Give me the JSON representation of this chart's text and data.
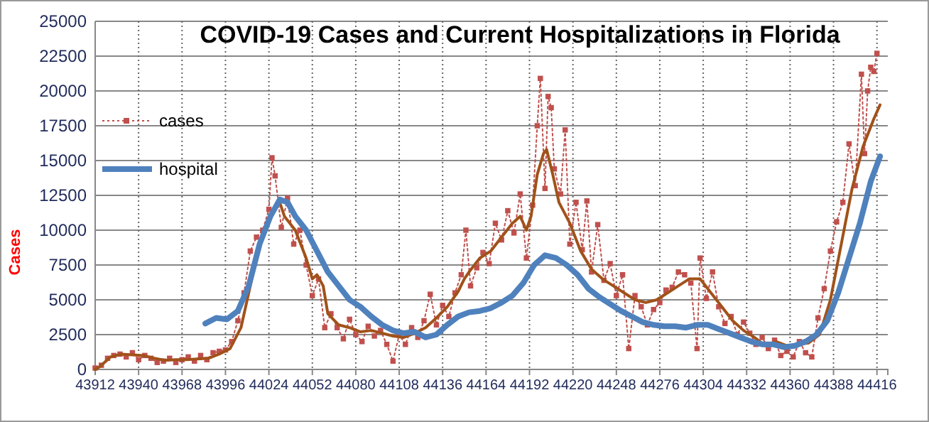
{
  "chart_data": {
    "type": "line",
    "title": "COVID-19 Cases and Current Hospitalizations  in Florida",
    "ylabel": "Cases",
    "xlim": [
      43912,
      44423
    ],
    "xticks": [
      43912,
      43940,
      43968,
      43996,
      44024,
      44052,
      44080,
      44108,
      44136,
      44164,
      44192,
      44220,
      44248,
      44276,
      44304,
      44332,
      44360,
      44388,
      44416
    ],
    "ylim": [
      0,
      25000
    ],
    "yticks": [
      0,
      2500,
      5000,
      7500,
      10000,
      12500,
      15000,
      17500,
      20000,
      22500,
      25000
    ],
    "grid": true,
    "legend": "top left",
    "series": [
      {
        "name": "cases",
        "color": "#c0504d",
        "marker": "square",
        "line_style": "dotted",
        "x": [
          43912,
          43916,
          43920,
          43924,
          43928,
          43932,
          43936,
          43940,
          43944,
          43948,
          43952,
          43956,
          43960,
          43964,
          43968,
          43972,
          43976,
          43980,
          43984,
          43988,
          43992,
          43996,
          44000,
          44004,
          44008,
          44012,
          44016,
          44020,
          44024,
          44026,
          44028,
          44032,
          44036,
          44040,
          44044,
          44048,
          44052,
          44056,
          44060,
          44064,
          44068,
          44072,
          44076,
          44080,
          44084,
          44088,
          44092,
          44096,
          44100,
          44104,
          44108,
          44112,
          44116,
          44120,
          44124,
          44128,
          44132,
          44136,
          44140,
          44144,
          44148,
          44151,
          44154,
          44158,
          44162,
          44166,
          44170,
          44174,
          44178,
          44182,
          44186,
          44190,
          44194,
          44197,
          44199,
          44202,
          44204,
          44206,
          44208,
          44212,
          44215,
          44218,
          44222,
          44226,
          44229,
          44232,
          44236,
          44240,
          44244,
          44248,
          44252,
          44256,
          44260,
          44264,
          44268,
          44272,
          44276,
          44280,
          44284,
          44288,
          44292,
          44296,
          44300,
          44302,
          44306,
          44310,
          44314,
          44318,
          44322,
          44326,
          44330,
          44334,
          44338,
          44342,
          44346,
          44350,
          44354,
          44358,
          44362,
          44366,
          44370,
          44374,
          44378,
          44382,
          44386,
          44390,
          44394,
          44398,
          44402,
          44406,
          44408,
          44410,
          44412,
          44414,
          44416
        ],
        "values": [
          100,
          300,
          800,
          1000,
          1100,
          900,
          1200,
          700,
          1000,
          800,
          500,
          600,
          800,
          500,
          700,
          900,
          600,
          1000,
          700,
          1200,
          1300,
          1400,
          2000,
          3500,
          5500,
          8500,
          9500,
          10000,
          11500,
          15200,
          13900,
          10200,
          12300,
          9000,
          10000,
          7500,
          5300,
          6500,
          3000,
          4000,
          3000,
          2200,
          3600,
          2500,
          2000,
          3100,
          2400,
          2800,
          1800,
          600,
          2500,
          1800,
          3000,
          2300,
          3500,
          5400,
          3200,
          4600,
          3800,
          5500,
          6800,
          10000,
          6000,
          7300,
          8400,
          7600,
          10500,
          9300,
          11400,
          9800,
          12600,
          8000,
          11800,
          17500,
          20900,
          13000,
          19600,
          18800,
          14400,
          12600,
          17200,
          9000,
          12000,
          8600,
          12100,
          7000,
          10400,
          6400,
          7600,
          5300,
          6800,
          1500,
          5300,
          4500,
          3200,
          4300,
          4800,
          5700,
          5900,
          7000,
          6800,
          6200,
          1500,
          8000,
          5100,
          7000,
          4500,
          3300,
          3800,
          2500,
          3400,
          2600,
          1800,
          2300,
          1500,
          2100,
          1000,
          1300,
          900,
          2000,
          1200,
          900,
          3700,
          5800,
          8500,
          10600,
          12000,
          16200,
          13200,
          21200,
          15500,
          20000,
          21700,
          21400,
          22700
        ]
      },
      {
        "color": "#a0521a",
        "marker": "none",
        "line_style": "solid",
        "x": [
          43912,
          43915,
          43922,
          43929,
          43936,
          43943,
          43950,
          43957,
          43964,
          43971,
          43978,
          43985,
          43992,
          43999,
          44006,
          44013,
          44020,
          44027,
          44031,
          44034,
          44041,
          44048,
          44052,
          44055,
          44059,
          44062,
          44069,
          44076,
          44083,
          44090,
          44097,
          44104,
          44111,
          44118,
          44125,
          44132,
          44139,
          44146,
          44150,
          44153,
          44160,
          44167,
          44174,
          44181,
          44186,
          44190,
          44193,
          44197,
          44201,
          44203,
          44207,
          44211,
          44218,
          44225,
          44232,
          44239,
          44246,
          44253,
          44260,
          44267,
          44274,
          44281,
          44288,
          44295,
          44302,
          44309,
          44316,
          44323,
          44330,
          44337,
          44344,
          44351,
          44358,
          44365,
          44372,
          44379,
          44386,
          44393,
          44400,
          44407,
          44414,
          44418
        ],
        "values": [
          0,
          200,
          900,
          1100,
          1050,
          1000,
          800,
          650,
          700,
          700,
          750,
          800,
          1100,
          1500,
          3000,
          6500,
          9500,
          11500,
          12000,
          11000,
          10000,
          8000,
          6500,
          6800,
          6000,
          4000,
          3200,
          3000,
          2700,
          2800,
          2600,
          2400,
          2300,
          2600,
          3000,
          3700,
          4500,
          5600,
          6500,
          7000,
          8000,
          8500,
          9500,
          10500,
          11000,
          10000,
          11000,
          14000,
          15500,
          15800,
          14000,
          12000,
          10500,
          8500,
          7200,
          6500,
          6000,
          5500,
          5000,
          4800,
          5000,
          5500,
          6000,
          6500,
          6500,
          5500,
          4500,
          3500,
          2800,
          2300,
          1700,
          2000,
          1700,
          1800,
          1900,
          2500,
          5000,
          9000,
          13000,
          16000,
          18000,
          19000
        ]
      },
      {
        "name": "hospital",
        "color": "#4f81bd",
        "marker": "none",
        "line_style": "solid",
        "x": [
          43983,
          43990,
          43997,
          44004,
          44011,
          44018,
          44025,
          44031,
          44036,
          44041,
          44048,
          44055,
          44062,
          44069,
          44076,
          44083,
          44090,
          44097,
          44104,
          44111,
          44118,
          44125,
          44132,
          44139,
          44146,
          44153,
          44160,
          44167,
          44174,
          44181,
          44188,
          44195,
          44202,
          44209,
          44216,
          44223,
          44230,
          44237,
          44244,
          44251,
          44258,
          44265,
          44272,
          44279,
          44286,
          44293,
          44300,
          44307,
          44314,
          44321,
          44328,
          44335,
          44342,
          44349,
          44356,
          44363,
          44370,
          44377,
          44384,
          44391,
          44398,
          44405,
          44412,
          44418
        ],
        "values": [
          3300,
          3700,
          3600,
          4200,
          6000,
          9000,
          11000,
          12200,
          12000,
          11000,
          10000,
          8500,
          7000,
          6000,
          5000,
          4500,
          3800,
          3200,
          2800,
          2600,
          2700,
          2300,
          2500,
          3200,
          3800,
          4100,
          4200,
          4400,
          4800,
          5300,
          6200,
          7500,
          8200,
          8000,
          7500,
          6800,
          5800,
          5200,
          4700,
          4200,
          3800,
          3400,
          3200,
          3100,
          3100,
          3000,
          3200,
          3200,
          2900,
          2600,
          2300,
          2000,
          1800,
          1800,
          1600,
          1700,
          2000,
          2500,
          3500,
          5500,
          8000,
          10500,
          13500,
          15300
        ]
      }
    ]
  }
}
